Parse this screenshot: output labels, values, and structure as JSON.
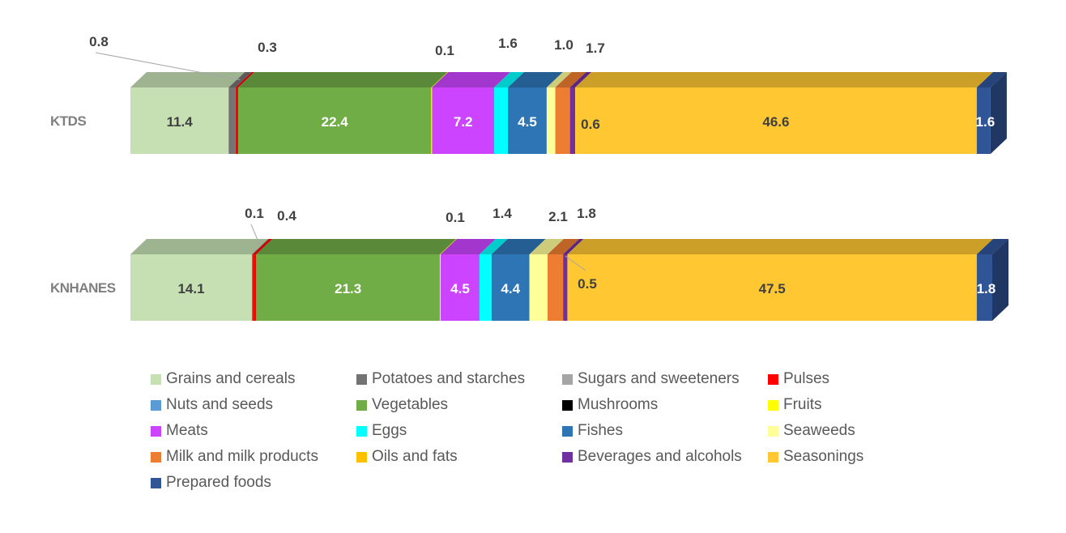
{
  "chart_data": {
    "type": "bar",
    "orientation": "horizontal",
    "stacked": true,
    "style": "3d",
    "categories": [
      "KTDS",
      "KNHANES"
    ],
    "series": [
      {
        "name": "Grains and cereals",
        "color": "#c6e0b4",
        "values": [
          11.4,
          14.1
        ],
        "labels": [
          "11.4",
          "14.1"
        ]
      },
      {
        "name": "Potatoes and starches",
        "color": "#737373",
        "values": [
          0.8,
          0.1
        ],
        "labels": [
          "0.8",
          "0.1"
        ]
      },
      {
        "name": "Sugars and sweeteners",
        "color": "#a5a5a5",
        "values": [
          0.0,
          0.0
        ],
        "labels": [
          "",
          ""
        ]
      },
      {
        "name": "Pulses",
        "color": "#ff0000",
        "values": [
          0.3,
          0.4
        ],
        "labels": [
          "0.3",
          "0.4"
        ]
      },
      {
        "name": "Nuts and seeds",
        "color": "#5b9bd5",
        "values": [
          0.0,
          0.0
        ],
        "labels": [
          "",
          ""
        ]
      },
      {
        "name": "Vegetables",
        "color": "#70ad47",
        "values": [
          22.4,
          21.3
        ],
        "labels": [
          "22.4",
          "21.3"
        ]
      },
      {
        "name": "Mushrooms",
        "color": "#000000",
        "values": [
          0.0,
          0.0
        ],
        "labels": [
          "",
          ""
        ]
      },
      {
        "name": "Fruits",
        "color": "#ffff00",
        "values": [
          0.1,
          0.1
        ],
        "labels": [
          "0.1",
          "0.1"
        ]
      },
      {
        "name": "Meats",
        "color": "#cc44ff",
        "values": [
          7.2,
          4.5
        ],
        "labels": [
          "7.2",
          "4.5"
        ]
      },
      {
        "name": "Eggs",
        "color": "#00ffff",
        "values": [
          1.6,
          1.4
        ],
        "labels": [
          "1.6",
          "1.4"
        ]
      },
      {
        "name": "Fishes",
        "color": "#2e75b6",
        "values": [
          4.5,
          4.4
        ],
        "labels": [
          "4.5",
          "4.4"
        ]
      },
      {
        "name": "Seaweeds",
        "color": "#ffff99",
        "values": [
          1.0,
          2.1
        ],
        "labels": [
          "1.0",
          "2.1"
        ]
      },
      {
        "name": "Milk and milk products",
        "color": "#ed7d31",
        "values": [
          1.7,
          1.8
        ],
        "labels": [
          "1.7",
          "1.8"
        ]
      },
      {
        "name": "Oils and fats",
        "color": "#ffc000",
        "values": [
          0.0,
          0.0
        ],
        "labels": [
          "",
          ""
        ]
      },
      {
        "name": "Beverages and alcohols",
        "color": "#7030a0",
        "values": [
          0.6,
          0.5
        ],
        "labels": [
          "0.6",
          "0.5"
        ]
      },
      {
        "name": "Seasonings",
        "color": "#ffc832",
        "values": [
          46.6,
          47.5
        ],
        "labels": [
          "46.6",
          "47.5"
        ]
      },
      {
        "name": "Prepared foods",
        "color": "#2f5597",
        "values": [
          1.6,
          1.8
        ],
        "labels": [
          "1.6",
          "1.8"
        ]
      }
    ],
    "xlim": [
      0,
      100
    ],
    "grid": false,
    "legend_position": "bottom",
    "title": "",
    "xlabel": "",
    "ylabel": ""
  }
}
